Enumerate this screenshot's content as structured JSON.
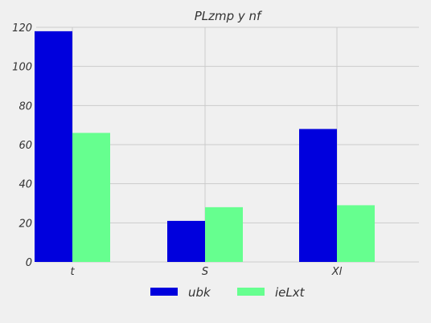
{
  "chart_data": {
    "type": "bar",
    "title": "PLzmp y nf",
    "xlabel": "",
    "ylabel": "",
    "categories": [
      "t",
      "S",
      "Xl"
    ],
    "series": [
      {
        "name": "ubk",
        "values": [
          118,
          21,
          68
        ],
        "color": "#0000dd"
      },
      {
        "name": "ieLxt",
        "values": [
          66,
          28,
          29
        ],
        "color": "#66ff8f"
      }
    ],
    "ylim": [
      0,
      120
    ],
    "yticks": [
      "0",
      "20",
      "40",
      "60",
      "80",
      "100",
      "120"
    ],
    "grid": true,
    "legend": "bottom-center"
  },
  "colors": {
    "background": "#f0f0f0",
    "grid": "#cbcbcb",
    "text": "#333333"
  }
}
